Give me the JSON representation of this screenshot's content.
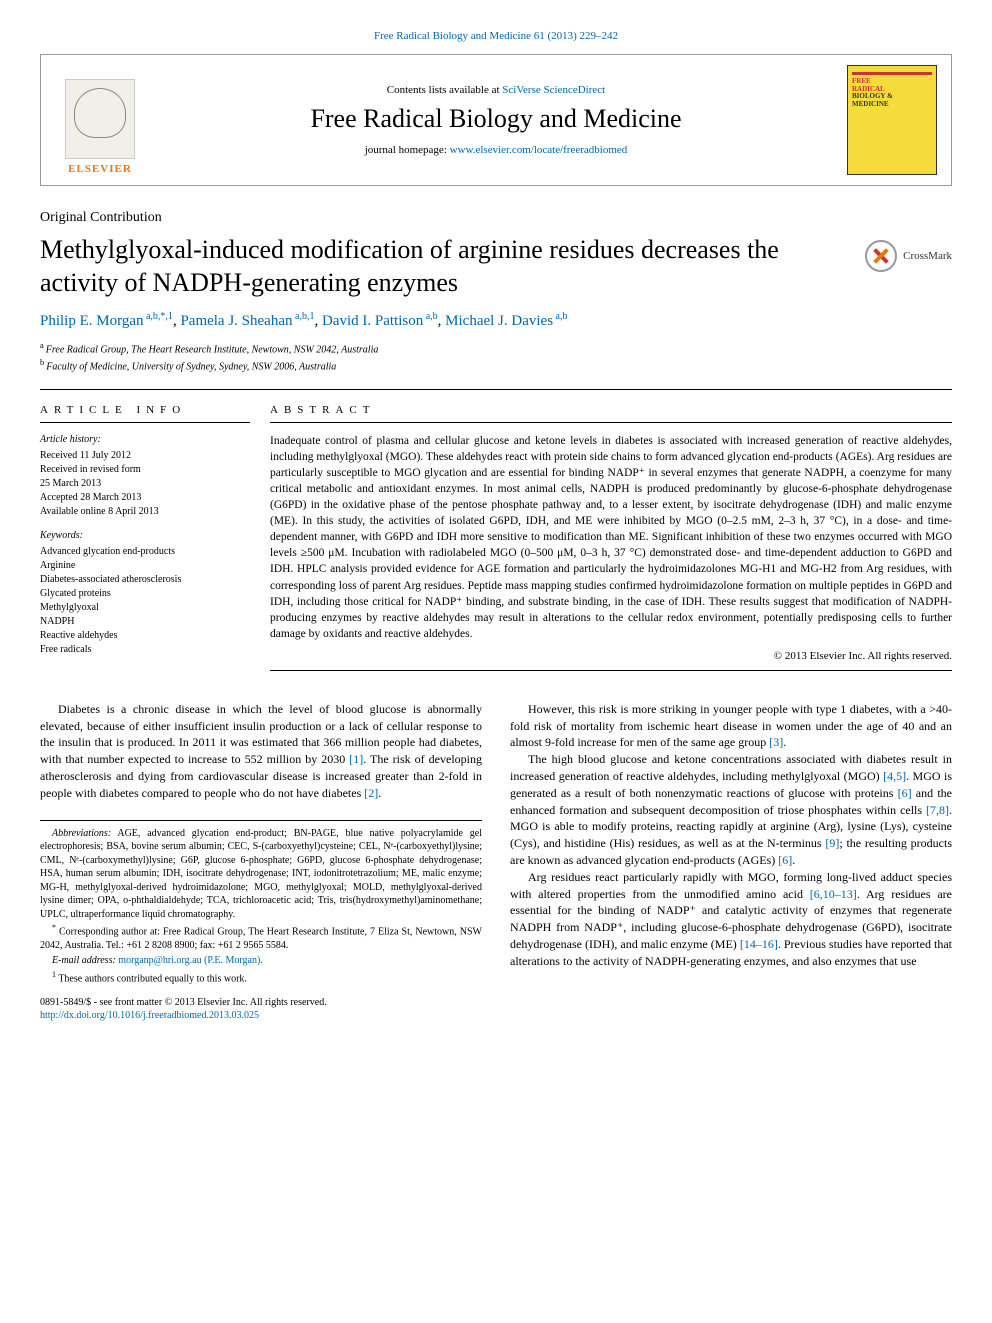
{
  "top_link": {
    "citation": "Free Radical Biology and Medicine 61 (2013) 229–242",
    "url": "Free Radical Biology and Medicine 61 (2013) 229–242"
  },
  "header": {
    "contents_prefix": "Contents lists available at ",
    "contents_link": "SciVerse ScienceDirect",
    "journal_name": "Free Radical Biology and Medicine",
    "homepage_prefix": "journal homepage: ",
    "homepage_link": "www.elsevier.com/locate/freeradbiomed",
    "elsevier_label": "ELSEVIER",
    "cover_title_line1": "FREE",
    "cover_title_line2": "RADICAL",
    "cover_title_line3": "BIOLOGY &",
    "cover_title_line4": "MEDICINE"
  },
  "article_type": "Original Contribution",
  "title": "Methylglyoxal-induced modification of arginine residues decreases the activity of NADPH-generating enzymes",
  "crossmark_label": "CrossMark",
  "authors_html": "Philip E. Morgan",
  "authors": [
    {
      "name": "Philip E. Morgan",
      "sup": "a,b,*,1"
    },
    {
      "name": "Pamela J. Sheahan",
      "sup": "a,b,1"
    },
    {
      "name": "David I. Pattison",
      "sup": "a,b"
    },
    {
      "name": "Michael J. Davies",
      "sup": "a,b"
    }
  ],
  "affiliations": [
    {
      "sup": "a",
      "text": "Free Radical Group, The Heart Research Institute, Newtown, NSW 2042, Australia"
    },
    {
      "sup": "b",
      "text": "Faculty of Medicine, University of Sydney, Sydney, NSW 2006, Australia"
    }
  ],
  "article_info_heading": "ARTICLE INFO",
  "abstract_heading": "ABSTRACT",
  "history_label": "Article history:",
  "history": [
    "Received 11 July 2012",
    "Received in revised form",
    "25 March 2013",
    "Accepted 28 March 2013",
    "Available online 8 April 2013"
  ],
  "keywords_label": "Keywords:",
  "keywords": [
    "Advanced glycation end-products",
    "Arginine",
    "Diabetes-associated atherosclerosis",
    "Glycated proteins",
    "Methylglyoxal",
    "NADPH",
    "Reactive aldehydes",
    "Free radicals"
  ],
  "abstract": "Inadequate control of plasma and cellular glucose and ketone levels in diabetes is associated with increased generation of reactive aldehydes, including methylglyoxal (MGO). These aldehydes react with protein side chains to form advanced glycation end-products (AGEs). Arg residues are particularly susceptible to MGO glycation and are essential for binding NADP⁺ in several enzymes that generate NADPH, a coenzyme for many critical metabolic and antioxidant enzymes. In most animal cells, NADPH is produced predominantly by glucose-6-phosphate dehydrogenase (G6PD) in the oxidative phase of the pentose phosphate pathway and, to a lesser extent, by isocitrate dehydrogenase (IDH) and malic enzyme (ME). In this study, the activities of isolated G6PD, IDH, and ME were inhibited by MGO (0–2.5 mM, 2–3 h, 37 °C), in a dose- and time-dependent manner, with G6PD and IDH more sensitive to modification than ME. Significant inhibition of these two enzymes occurred with MGO levels ≥500 μM. Incubation with radiolabeled MGO (0–500 μM, 0–3 h, 37 °C) demonstrated dose- and time-dependent adduction to G6PD and IDH. HPLC analysis provided evidence for AGE formation and particularly the hydroimidazolones MG-H1 and MG-H2 from Arg residues, with corresponding loss of parent Arg residues. Peptide mass mapping studies confirmed hydroimidazolone formation on multiple peptides in G6PD and IDH, including those critical for NADP⁺ binding, and substrate binding, in the case of IDH. These results suggest that modification of NADPH-producing enzymes by reactive aldehydes may result in alterations to the cellular redox environment, potentially predisposing cells to further damage by oxidants and reactive aldehydes.",
  "copyright": "© 2013 Elsevier Inc. All rights reserved.",
  "body": {
    "left_p1": "Diabetes is a chronic disease in which the level of blood glucose is abnormally elevated, because of either insufficient insulin production or a lack of cellular response to the insulin that is produced. In 2011 it was estimated that 366 million people had diabetes, with that number expected to increase to 552 million by 2030 [1]. The risk of developing atherosclerosis and dying from cardiovascular disease is increased greater than 2-fold in people with diabetes compared to people who do not have diabetes [2].",
    "right_p1": "However, this risk is more striking in younger people with type 1 diabetes, with a >40-fold risk of mortality from ischemic heart disease in women under the age of 40 and an almost 9-fold increase for men of the same age group [3].",
    "right_p2": "The high blood glucose and ketone concentrations associated with diabetes result in increased generation of reactive aldehydes, including methylglyoxal (MGO) [4,5]. MGO is generated as a result of both nonenzymatic reactions of glucose with proteins [6] and the enhanced formation and subsequent decomposition of triose phosphates within cells [7,8]. MGO is able to modify proteins, reacting rapidly at arginine (Arg), lysine (Lys), cysteine (Cys), and histidine (His) residues, as well as at the N-terminus [9]; the resulting products are known as advanced glycation end-products (AGEs) [6].",
    "right_p3": "Arg residues react particularly rapidly with MGO, forming long-lived adduct species with altered properties from the unmodified amino acid [6,10–13]. Arg residues are essential for the binding of NADP⁺ and catalytic activity of enzymes that regenerate NADPH from NADP⁺, including glucose-6-phosphate dehydrogenase (G6PD), isocitrate dehydrogenase (IDH), and malic enzyme (ME) [14–16]. Previous studies have reported that alterations to the activity of NADPH-generating enzymes, and also enzymes that use"
  },
  "abbreviations_label": "Abbreviations:",
  "abbreviations": "AGE, advanced glycation end-product; BN-PAGE, blue native polyacrylamide gel electrophoresis; BSA, bovine serum albumin; CEC, S-(carboxyethyl)cysteine; CEL, Nᵉ-(carboxyethyl)lysine; CML, Nᵉ-(carboxymethyl)lysine; G6P, glucose 6-phosphate; G6PD, glucose 6-phosphate dehydrogenase; HSA, human serum albumin; IDH, isocitrate dehydrogenase; INT, iodonitrotetrazolium; ME, malic enzyme; MG-H, methylglyoxal-derived hydroimidazolone; MGO, methylglyoxal; MOLD, methylglyoxal-derived lysine dimer; OPA, o-phthaldialdehyde; TCA, trichloroacetic acid; Tris, tris(hydroxymethyl)aminomethane; UPLC, ultraperformance liquid chromatography.",
  "correspondence": "Corresponding author at: Free Radical Group, The Heart Research Institute, 7 Eliza St, Newtown, NSW 2042, Australia. Tel.: +61 2 8208 8900; fax: +61 2 9565 5584.",
  "email_label": "E-mail address:",
  "email": "morganp@hri.org.au (P.E. Morgan).",
  "equal_contribution": "These authors contributed equally to this work.",
  "front_matter_line1": "0891-5849/$ - see front matter © 2013 Elsevier Inc. All rights reserved.",
  "doi": "http://dx.doi.org/10.1016/j.freeradbiomed.2013.03.025",
  "refs": {
    "r1": "[1]",
    "r2": "[2]",
    "r3": "[3]",
    "r45": "[4,5]",
    "r6a": "[6]",
    "r78": "[7,8]",
    "r9": "[9]",
    "r6b": "[6]",
    "r6c": "[6,10–13]",
    "r1416": "[14–16]"
  }
}
